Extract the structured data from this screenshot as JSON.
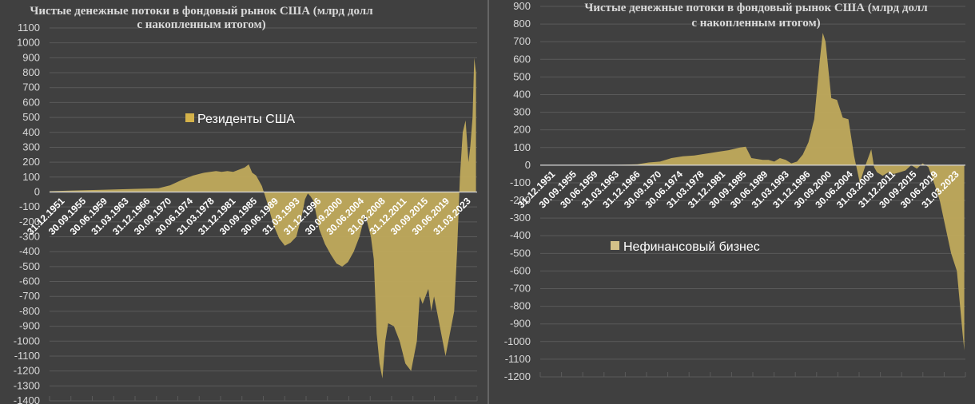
{
  "colors": {
    "background": "#404040",
    "fill": "#c0aa5c",
    "legend_swatch": "#d4b24a",
    "swatch2": "#d4c188",
    "grid": "#5a5a5a",
    "axis": "#d9d9d9",
    "divider": "#8a8a8a"
  },
  "chart_data": [
    {
      "type": "area",
      "title": "Чистые денежные потоки в фондовый рынок США (млрд долл с накопленным итогом)",
      "title_lines": [
        "Чистые денежные потоки в фондовый рынок США (млрд долл",
        "с накопленным итогом)"
      ],
      "ylim": [
        -1400,
        1100
      ],
      "yticks": [
        1100,
        1000,
        900,
        800,
        700,
        600,
        500,
        400,
        300,
        200,
        100,
        0,
        -100,
        -200,
        -300,
        -400,
        -500,
        -600,
        -700,
        -800,
        -900,
        -1000,
        -1100,
        -1200,
        -1300,
        -1400
      ],
      "xlim": [
        1951,
        2025.5
      ],
      "x_tick_labels": [
        "31.12.1951",
        "30.09.1955",
        "30.06.1959",
        "31.03.1963",
        "31.12.1966",
        "30.09.1970",
        "30.06.1974",
        "31.03.1978",
        "31.12.1981",
        "30.09.1985",
        "30.06.1989",
        "31.03.1993",
        "31.12.1996",
        "30.09.2000",
        "30.06.2004",
        "31.03.2008",
        "31.12.2011",
        "30.09.2015",
        "30.06.2019",
        "31.03.2023"
      ],
      "series": [
        {
          "name": "Резиденты США",
          "x": [
            1951,
            1955,
            1960,
            1965,
            1970,
            1972,
            1974,
            1976,
            1978,
            1980,
            1981,
            1982,
            1983,
            1984,
            1985,
            1985.7,
            1986.3,
            1987,
            1988,
            1989,
            1990,
            1991,
            1992,
            1993,
            1994,
            1995,
            1995.5,
            1996,
            1996.5,
            1997,
            1998,
            1999,
            2000,
            2001,
            2002,
            2003,
            2004,
            2005,
            2006,
            2007,
            2007.5,
            2008,
            2008.5,
            2009,
            2009.5,
            2010,
            2011,
            2012,
            2013,
            2014,
            2015,
            2015.5,
            2016,
            2017,
            2017.5,
            2018,
            2019,
            2020,
            2020.5,
            2021,
            2021.5,
            2022,
            2022.5,
            2023,
            2023.5,
            2024,
            2024.3,
            2024.7,
            2025,
            2025.3
          ],
          "values": [
            5,
            10,
            15,
            20,
            25,
            45,
            80,
            110,
            130,
            140,
            135,
            140,
            135,
            150,
            165,
            185,
            130,
            110,
            40,
            -80,
            -220,
            -310,
            -360,
            -340,
            -300,
            -150,
            -50,
            -10,
            -30,
            -60,
            -250,
            -350,
            -420,
            -480,
            -500,
            -470,
            -400,
            -300,
            -150,
            -300,
            -450,
            -950,
            -1150,
            -1250,
            -1000,
            -880,
            -900,
            -1000,
            -1150,
            -1200,
            -1000,
            -700,
            -750,
            -650,
            -800,
            -700,
            -900,
            -1100,
            -1000,
            -900,
            -800,
            -400,
            100,
            400,
            480,
            200,
            300,
            500,
            900,
            800
          ]
        }
      ],
      "legend": {
        "label": "Резиденты США",
        "position": "center-left"
      }
    },
    {
      "type": "area",
      "title": "Чистые денежные потоки в фондовый рынок США (млрд долл с накопленным итогом)",
      "title_lines": [
        "Чистые денежные потоки в фондовый рынок США (млрд долл",
        "с накопленным итогом)"
      ],
      "ylim": [
        -1200,
        900
      ],
      "yticks": [
        900,
        800,
        700,
        600,
        500,
        400,
        300,
        200,
        100,
        0,
        -100,
        -200,
        -300,
        -400,
        -500,
        -600,
        -700,
        -800,
        -900,
        -1000,
        -1100,
        -1200
      ],
      "xlim": [
        1951,
        2025.5
      ],
      "x_tick_labels": [
        "31.12.1951",
        "30.09.1955",
        "30.06.1959",
        "31.03.1963",
        "31.12.1966",
        "30.09.1970",
        "30.06.1974",
        "31.03.1978",
        "31.12.1981",
        "30.09.1985",
        "30.06.1989",
        "31.03.1993",
        "31.12.1996",
        "30.09.2000",
        "30.06.2004",
        "31.03.2008",
        "31.12.2011",
        "30.09.2015",
        "30.06.2019",
        "31.03.2023"
      ],
      "series": [
        {
          "name": "Нефинансовый бизнес",
          "x": [
            1951,
            1960,
            1965,
            1968,
            1970,
            1972,
            1974,
            1976,
            1978,
            1980,
            1982,
            1984,
            1986,
            1987,
            1988,
            1989,
            1990,
            1991,
            1992,
            1993,
            1994,
            1995,
            1996,
            1997,
            1998,
            1999,
            2000,
            2000.5,
            2001,
            2002,
            2003,
            2004,
            2005,
            2006,
            2007,
            2008,
            2009,
            2009.5,
            2010,
            2011,
            2012,
            2013,
            2014,
            2015,
            2016,
            2017,
            2018,
            2019,
            2020,
            2021,
            2022,
            2023,
            2024,
            2025,
            2025.3
          ],
          "values": [
            0,
            0,
            2,
            5,
            15,
            20,
            40,
            50,
            55,
            65,
            75,
            85,
            100,
            105,
            40,
            35,
            30,
            30,
            20,
            40,
            30,
            10,
            20,
            60,
            130,
            260,
            600,
            750,
            700,
            380,
            370,
            270,
            260,
            50,
            -100,
            0,
            90,
            -10,
            -40,
            -60,
            -40,
            -50,
            -40,
            -30,
            0,
            -20,
            10,
            -10,
            -100,
            -200,
            -350,
            -500,
            -600,
            -950,
            -1050
          ]
        }
      ],
      "legend": {
        "label": "Нефинансовый бизнес",
        "position": "center-left"
      }
    }
  ]
}
